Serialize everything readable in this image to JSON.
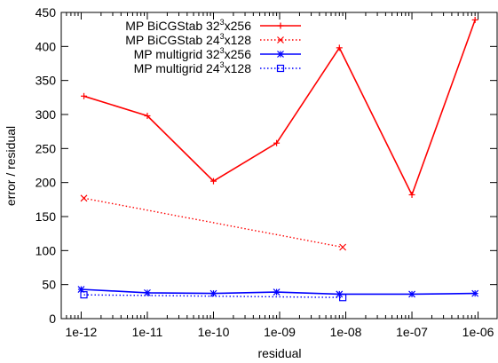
{
  "chart_data": {
    "type": "line",
    "title": "",
    "xlabel": "residual",
    "ylabel": "error / residual",
    "xscale": "log",
    "xlim": [
      5e-13,
      2e-06
    ],
    "ylim": [
      0,
      450
    ],
    "x_ticks": [
      1e-12,
      1e-11,
      1e-10,
      1e-09,
      1e-08,
      1e-07,
      1e-06
    ],
    "x_tick_labels": [
      "1e-12",
      "1e-11",
      "1e-10",
      "1e-09",
      "1e-08",
      "1e-07",
      "1e-06"
    ],
    "y_ticks": [
      0,
      50,
      100,
      150,
      200,
      250,
      300,
      350,
      400,
      450
    ],
    "y_tick_labels": [
      "0",
      "50",
      "100",
      "150",
      "200",
      "250",
      "300",
      "350",
      "400",
      "450"
    ],
    "grid": false,
    "legend_position": "top-right",
    "series": [
      {
        "name_main": "MP BiCGStab 32",
        "name_sup": "3",
        "name_tail": "x256",
        "color": "#ff0000",
        "dash": "solid",
        "marker": "plus",
        "points": [
          [
            1.1e-12,
            327
          ],
          [
            1e-11,
            298
          ],
          [
            1e-10,
            202
          ],
          [
            9e-10,
            258
          ],
          [
            8e-09,
            398
          ],
          [
            1e-07,
            182
          ],
          [
            9e-07,
            439
          ]
        ]
      },
      {
        "name_main": "MP BiCGStab 24",
        "name_sup": "3",
        "name_tail": "x128",
        "color": "#ff0000",
        "dash": "dotted",
        "marker": "cross",
        "points": [
          [
            1.1e-12,
            177
          ],
          [
            9e-09,
            105
          ]
        ]
      },
      {
        "name_main": "MP multigrid 32",
        "name_sup": "3",
        "name_tail": "x256",
        "color": "#0000ff",
        "dash": "solid",
        "marker": "star",
        "points": [
          [
            1e-12,
            43
          ],
          [
            1e-11,
            38
          ],
          [
            1e-10,
            37
          ],
          [
            9e-10,
            39
          ],
          [
            8e-09,
            36
          ],
          [
            1e-07,
            36
          ],
          [
            9e-07,
            37
          ]
        ]
      },
      {
        "name_main": "MP multigrid 24",
        "name_sup": "3",
        "name_tail": "x128",
        "color": "#0000ff",
        "dash": "dotted",
        "marker": "box",
        "points": [
          [
            1.1e-12,
            35
          ],
          [
            9e-09,
            31
          ]
        ]
      }
    ]
  }
}
